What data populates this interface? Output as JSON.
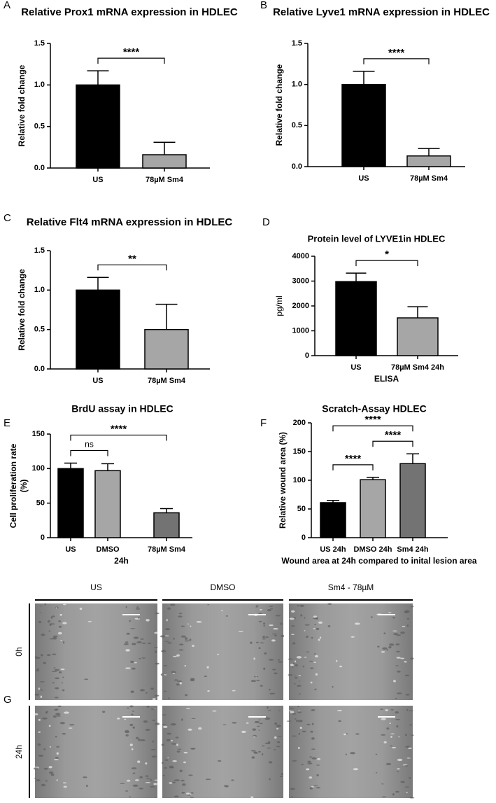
{
  "chart_data": [
    {
      "type": "bar",
      "panel": "A",
      "title": "Relative Prox1 mRNA expression in HDLEC",
      "ylabel": "Relative fold change",
      "categories": [
        "US",
        "78µM Sm4"
      ],
      "values": [
        1.0,
        0.16
      ],
      "errors": [
        0.17,
        0.15
      ],
      "colors": [
        "#000000",
        "#a6a6a6"
      ],
      "ylim": [
        0,
        1.5
      ],
      "yticks": [
        {
          "value": 0,
          "label": "0.0"
        },
        0.5,
        {
          "value": 1,
          "label": "1.0"
        },
        1.5
      ],
      "brackets": [
        {
          "label": "****",
          "between": [
            "US",
            "78µM Sm4"
          ]
        }
      ]
    },
    {
      "type": "bar",
      "panel": "B",
      "title": "Relative Lyve1 mRNA expression in HDLEC",
      "ylabel": "Relative fold change",
      "categories": [
        "US",
        "78µM Sm4"
      ],
      "values": [
        1.0,
        0.13
      ],
      "errors": [
        0.16,
        0.09
      ],
      "colors": [
        "#000000",
        "#a6a6a6"
      ],
      "ylim": [
        0,
        1.5
      ],
      "yticks": [
        {
          "value": 0,
          "label": "0.0"
        },
        0.5,
        {
          "value": 1,
          "label": "1.0"
        },
        1.5
      ],
      "brackets": [
        {
          "label": "****",
          "between": [
            "US",
            "78µM Sm4"
          ]
        }
      ]
    },
    {
      "type": "bar",
      "panel": "C",
      "title": "Relative Flt4 mRNA expression in HDLEC",
      "ylabel": "Relative fold change",
      "categories": [
        "US",
        "78µM Sm4"
      ],
      "values": [
        1.0,
        0.5
      ],
      "errors": [
        0.16,
        0.32
      ],
      "colors": [
        "#000000",
        "#a6a6a6"
      ],
      "ylim": [
        0,
        1.5
      ],
      "yticks": [
        {
          "value": 0,
          "label": "0.0"
        },
        0.5,
        {
          "value": 1,
          "label": "1.0"
        },
        1.5
      ],
      "brackets": [
        {
          "label": "**",
          "between": [
            "US",
            "78µM Sm4"
          ]
        }
      ]
    },
    {
      "type": "bar",
      "panel": "D",
      "title": "Protein level of LYVE1in HDLEC",
      "ylabel": "pg/ml",
      "xlabel": "ELISA",
      "categories": [
        "US",
        "78µM Sm4 24h"
      ],
      "values": [
        2980,
        1520
      ],
      "errors": [
        340,
        450
      ],
      "colors": [
        "#000000",
        "#a6a6a6"
      ],
      "ylim": [
        0,
        4000
      ],
      "yticks": [
        0,
        1000,
        2000,
        3000,
        4000
      ],
      "brackets": [
        {
          "label": "*",
          "between": [
            "US",
            "78µM Sm4 24h"
          ]
        }
      ]
    },
    {
      "type": "bar",
      "panel": "E",
      "title": "BrdU assay in HDLEC",
      "ylabel": [
        "Cell proliferation rate",
        "(%)"
      ],
      "xlabel": "24h",
      "categories": [
        "US",
        "DMSO",
        "78µM Sm4"
      ],
      "values": [
        100,
        97,
        36
      ],
      "errors": [
        8,
        10,
        6
      ],
      "colors": [
        "#000000",
        "#a6a6a6",
        "#737373"
      ],
      "ylim": [
        0,
        150
      ],
      "yticks": [
        0,
        50,
        100,
        150
      ],
      "brackets": [
        {
          "label": "ns",
          "between": [
            "US",
            "DMSO"
          ]
        },
        {
          "label": "****",
          "between": [
            "US",
            "78µM Sm4"
          ]
        }
      ]
    },
    {
      "type": "bar",
      "panel": "F",
      "title": "Scratch-Assay HDLEC",
      "ylabel": "Relative wound area (%)",
      "xlabel": "Wound area at 24h compared to inital lesion area",
      "categories": [
        "US 24h",
        "DMSO 24h",
        "Sm4 24h"
      ],
      "values": [
        61,
        101,
        129
      ],
      "errors": [
        4,
        4,
        17
      ],
      "colors": [
        "#000000",
        "#a6a6a6",
        "#737373"
      ],
      "ylim": [
        0,
        200
      ],
      "yticks": [
        0,
        50,
        100,
        150,
        200
      ],
      "brackets": [
        {
          "label": "****",
          "between": [
            "US 24h",
            "DMSO 24h"
          ]
        },
        {
          "label": "****",
          "between": [
            "DMSO 24h",
            "Sm4 24h"
          ]
        },
        {
          "label": "****",
          "between": [
            "US 24h",
            "Sm4 24h"
          ]
        }
      ]
    }
  ],
  "micrographs": {
    "panel": "G",
    "columns": [
      "US",
      "DMSO",
      "Sm4 - 78µM"
    ],
    "rows": [
      "0h",
      "24h"
    ]
  }
}
